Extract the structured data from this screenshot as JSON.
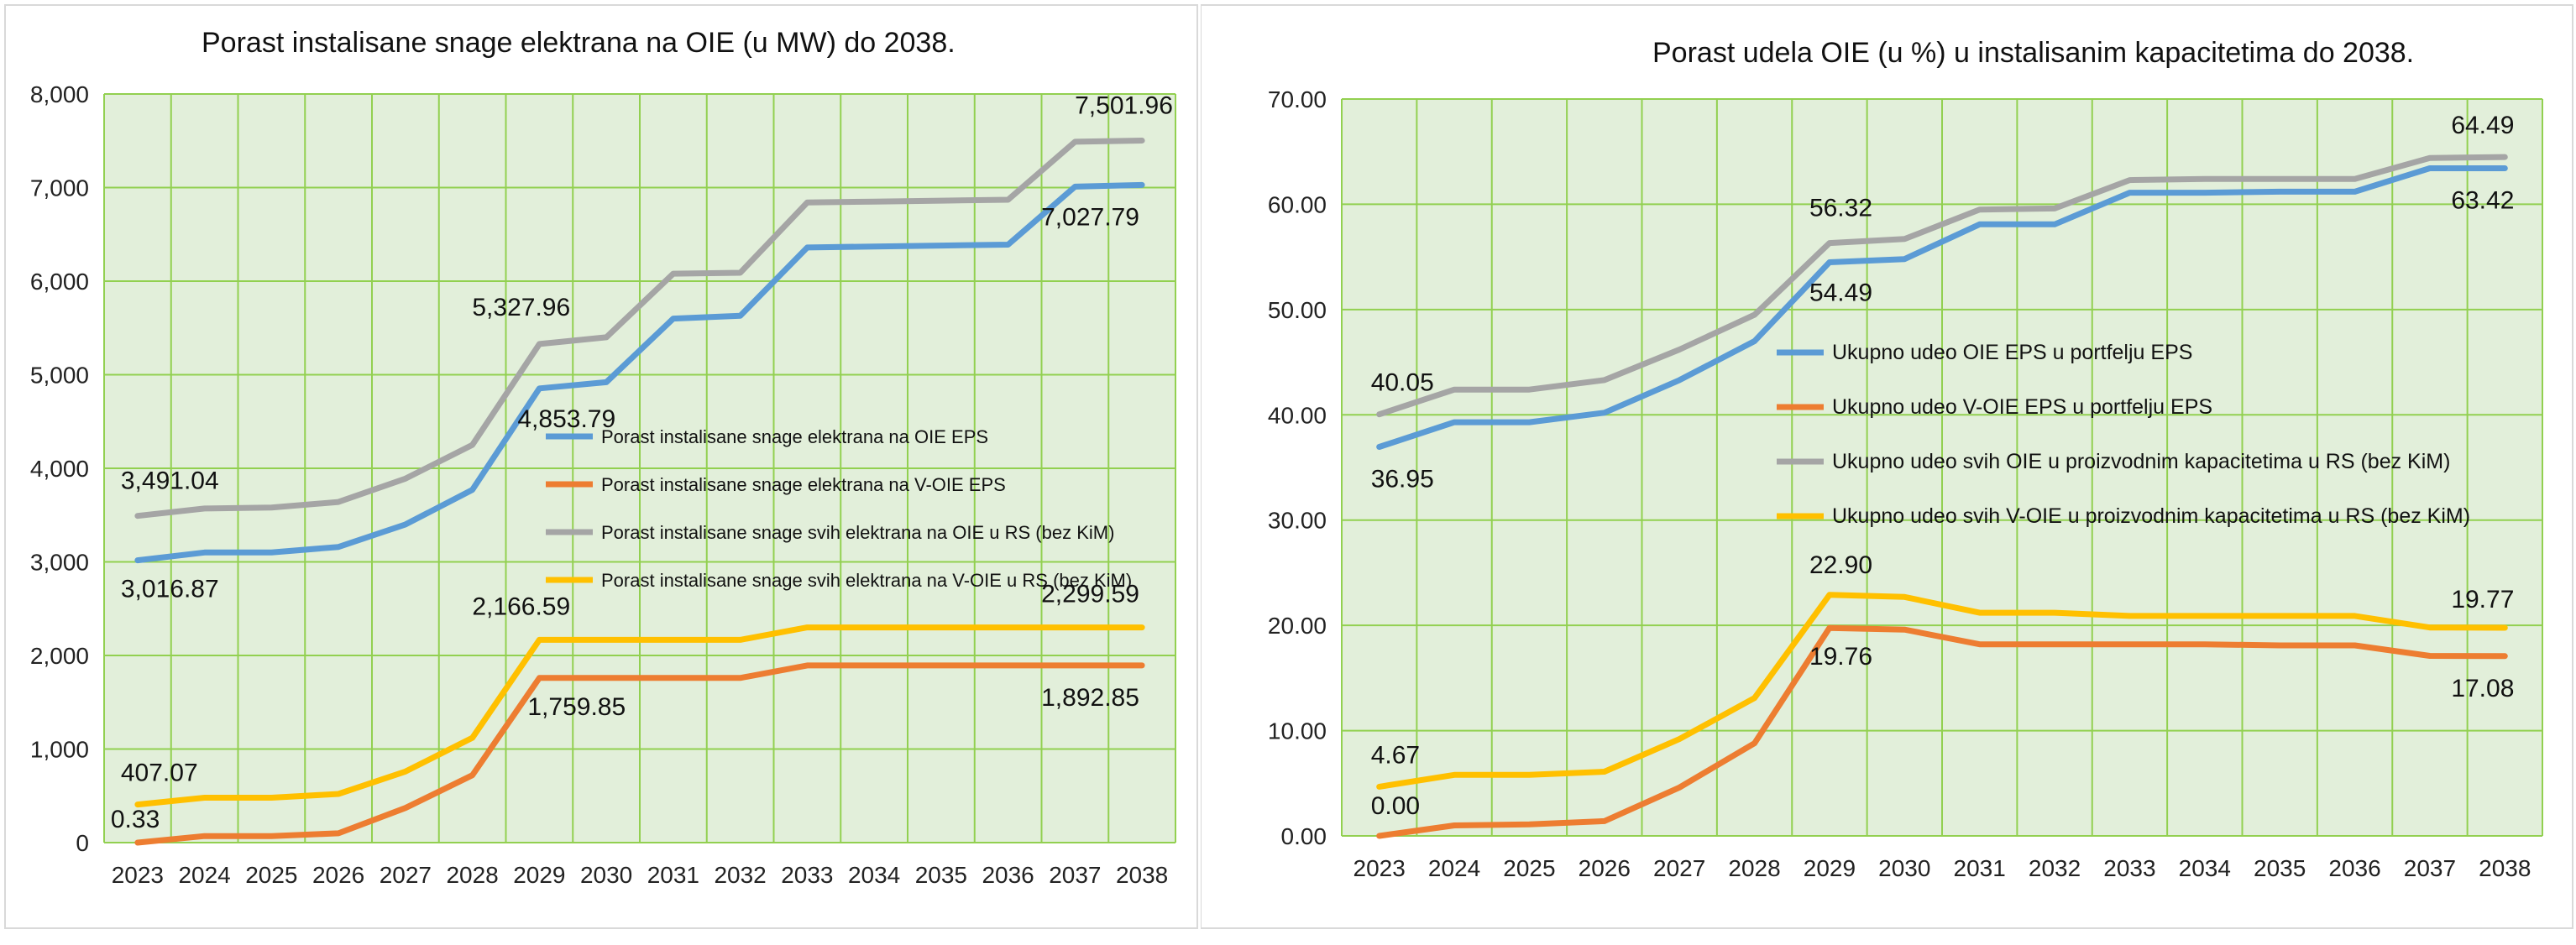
{
  "chart_data": [
    {
      "type": "line",
      "title": "Porast instalisane snage elektrana na OIE (u MW) do 2038.",
      "xlabel": "",
      "ylabel": "",
      "ylim": [
        0,
        8000
      ],
      "yticks": [
        "0",
        "1,000",
        "2,000",
        "3,000",
        "4,000",
        "5,000",
        "6,000",
        "7,000",
        "8,000"
      ],
      "grid": true,
      "legend_position": "center",
      "categories": [
        "2023",
        "2024",
        "2025",
        "2026",
        "2027",
        "2028",
        "2029",
        "2030",
        "2031",
        "2032",
        "2033",
        "2034",
        "2035",
        "2036",
        "2037",
        "2038"
      ],
      "series": [
        {
          "name": "Porast instalisane snage elektrana na OIE EPS",
          "color": "#5b9bd5",
          "values": [
            3016.87,
            3100,
            3100,
            3160,
            3400,
            3770,
            4853.79,
            4920,
            5600,
            5630,
            6360,
            6370,
            6380,
            6390,
            7010,
            7027.79
          ]
        },
        {
          "name": "Porast instalisane snage elektrana na V-OIE EPS",
          "color": "#ed7d31",
          "values": [
            0.33,
            70,
            70,
            100,
            370,
            720,
            1759.85,
            1759.85,
            1759.85,
            1759.85,
            1892.85,
            1892.85,
            1892.85,
            1892.85,
            1892.85,
            1892.85
          ]
        },
        {
          "name": "Porast instalisane snage svih elektrana na OIE u RS (bez KiM)",
          "color": "#a5a5a5",
          "values": [
            3491.04,
            3570,
            3580,
            3640,
            3890,
            4250,
            5327.96,
            5400,
            6080,
            6090,
            6840,
            6850,
            6860,
            6870,
            7490,
            7501.96
          ]
        },
        {
          "name": "Porast instalisane snage svih elektrana na V-OIE u RS (bez KiM)",
          "color": "#ffc000",
          "values": [
            407.07,
            480,
            480,
            520,
            760,
            1120,
            2166.59,
            2166.59,
            2166.59,
            2166.59,
            2299.59,
            2299.59,
            2299.59,
            2299.59,
            2299.59,
            2299.59
          ]
        }
      ],
      "data_labels": [
        {
          "series": 2,
          "index": 0,
          "text": "3,491.04"
        },
        {
          "series": 0,
          "index": 0,
          "text": "3,016.87"
        },
        {
          "series": 3,
          "index": 0,
          "text": "407.07"
        },
        {
          "series": 1,
          "index": 0,
          "text": "0.33"
        },
        {
          "series": 2,
          "index": 6,
          "text": "5,327.96"
        },
        {
          "series": 0,
          "index": 6,
          "text": "4,853.79"
        },
        {
          "series": 3,
          "index": 6,
          "text": "2,166.59"
        },
        {
          "series": 1,
          "index": 6,
          "text": "1,759.85"
        },
        {
          "series": 2,
          "index": 15,
          "text": "7,501.96"
        },
        {
          "series": 0,
          "index": 15,
          "text": "7,027.79"
        },
        {
          "series": 3,
          "index": 15,
          "text": "2,299.59"
        },
        {
          "series": 1,
          "index": 15,
          "text": "1,892.85"
        }
      ]
    },
    {
      "type": "line",
      "title": "Porast udela OIE (u %) u instalisanim kapacitetima do 2038.",
      "xlabel": "",
      "ylabel": "",
      "ylim": [
        0,
        70
      ],
      "yticks": [
        "0.00",
        "10.00",
        "20.00",
        "30.00",
        "40.00",
        "50.00",
        "60.00",
        "70.00"
      ],
      "grid": true,
      "legend_position": "center",
      "categories": [
        "2023",
        "2024",
        "2025",
        "2026",
        "2027",
        "2028",
        "2029",
        "2030",
        "2031",
        "2032",
        "2033",
        "2034",
        "2035",
        "2036",
        "2037",
        "2038"
      ],
      "series": [
        {
          "name": "Ukupno udeo OIE EPS u portfelju EPS",
          "color": "#5b9bd5",
          "values": [
            36.95,
            39.3,
            39.3,
            40.2,
            43.3,
            47.0,
            54.49,
            54.8,
            58.1,
            58.1,
            61.1,
            61.1,
            61.2,
            61.2,
            63.42,
            63.42
          ]
        },
        {
          "name": "Ukupno udeo V-OIE EPS u portfelju EPS",
          "color": "#ed7d31",
          "values": [
            0.0,
            1.0,
            1.1,
            1.4,
            4.6,
            8.8,
            19.76,
            19.6,
            18.2,
            18.2,
            18.2,
            18.2,
            18.1,
            18.1,
            17.1,
            17.08
          ]
        },
        {
          "name": "Ukupno udeo svih OIE u proizvodnim kapacitetima u RS (bez KiM)",
          "color": "#a5a5a5",
          "values": [
            40.05,
            42.4,
            42.4,
            43.3,
            46.2,
            49.5,
            56.32,
            56.7,
            59.5,
            59.6,
            62.3,
            62.4,
            62.4,
            62.4,
            64.4,
            64.49
          ]
        },
        {
          "name": "Ukupno udeo svih V-OIE u proizvodnim kapacitetima u RS (bez KiM)",
          "color": "#ffc000",
          "values": [
            4.67,
            5.8,
            5.8,
            6.1,
            9.2,
            13.1,
            22.9,
            22.7,
            21.2,
            21.2,
            20.9,
            20.9,
            20.9,
            20.9,
            19.8,
            19.77
          ]
        }
      ],
      "data_labels": [
        {
          "series": 2,
          "index": 0,
          "text": "40.05"
        },
        {
          "series": 0,
          "index": 0,
          "text": "36.95"
        },
        {
          "series": 3,
          "index": 0,
          "text": "4.67"
        },
        {
          "series": 1,
          "index": 0,
          "text": "0.00"
        },
        {
          "series": 2,
          "index": 6,
          "text": "56.32"
        },
        {
          "series": 0,
          "index": 6,
          "text": "54.49"
        },
        {
          "series": 3,
          "index": 6,
          "text": "22.90"
        },
        {
          "series": 1,
          "index": 6,
          "text": "19.76"
        },
        {
          "series": 2,
          "index": 15,
          "text": "64.49"
        },
        {
          "series": 0,
          "index": 15,
          "text": "63.42"
        },
        {
          "series": 3,
          "index": 15,
          "text": "19.77"
        },
        {
          "series": 1,
          "index": 15,
          "text": "17.08"
        }
      ]
    }
  ]
}
